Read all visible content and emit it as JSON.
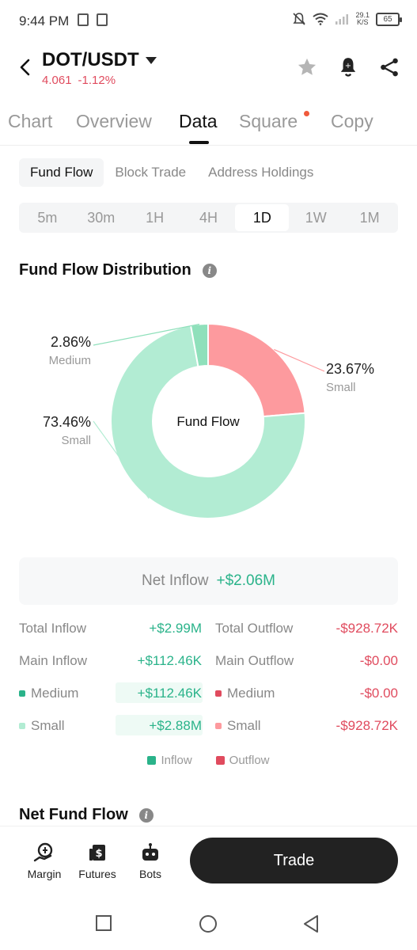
{
  "status_bar": {
    "time": "9:44 PM",
    "net_speed_value": "29.1",
    "net_speed_unit": "K/S",
    "battery": "65"
  },
  "header": {
    "pair": "DOT/USDT",
    "price": "4.061",
    "change": "-1.12%",
    "icons": [
      "back-arrow-icon",
      "caret-down-icon",
      "star-icon",
      "bell-icon",
      "share-icon"
    ]
  },
  "tabs": [
    {
      "label": "Chart",
      "active": false
    },
    {
      "label": "Overview",
      "active": false
    },
    {
      "label": "Data",
      "active": true
    },
    {
      "label": "Square",
      "active": false,
      "badge": true
    },
    {
      "label": "Copy",
      "active": false
    }
  ],
  "subtabs": [
    {
      "label": "Fund Flow",
      "active": true
    },
    {
      "label": "Block Trade",
      "active": false
    },
    {
      "label": "Address Holdings",
      "active": false
    }
  ],
  "timeframes": [
    {
      "label": "5m",
      "active": false
    },
    {
      "label": "30m",
      "active": false
    },
    {
      "label": "1H",
      "active": false
    },
    {
      "label": "4H",
      "active": false
    },
    {
      "label": "1D",
      "active": true
    },
    {
      "label": "1W",
      "active": false
    },
    {
      "label": "1M",
      "active": false
    }
  ],
  "distribution": {
    "title": "Fund Flow Distribution",
    "center_label": "Fund Flow"
  },
  "chart_data": {
    "type": "pie",
    "title": "Fund Flow Distribution",
    "center_label": "Fund Flow",
    "slices": [
      {
        "label": "Small",
        "pct_label": "23.67%",
        "value": 23.67,
        "color": "#fd9a9e",
        "side": "outflow"
      },
      {
        "label": "Small",
        "pct_label": "73.46%",
        "value": 73.46,
        "color": "#b2ecd3",
        "side": "inflow"
      },
      {
        "label": "Medium",
        "pct_label": "2.86%",
        "value": 2.86,
        "color": "#8fe0bb",
        "side": "inflow"
      }
    ]
  },
  "net_inflow": {
    "label": "Net Inflow",
    "value": "+$2.06M"
  },
  "flows": {
    "inflow": [
      {
        "label": "Total Inflow",
        "value": "+$2.99M",
        "bullet": false,
        "bar": 0
      },
      {
        "label": "Main Inflow",
        "value": "+$112.46K",
        "bullet": false,
        "bar": 0
      },
      {
        "label": "Medium",
        "value": "+$112.46K",
        "bullet": true,
        "bullet_color": "#2ab38a",
        "bar": 1.0
      },
      {
        "label": "Small",
        "value": "+$2.88M",
        "bullet": true,
        "bullet_color": "#b2ecd3",
        "bar": 1.0
      }
    ],
    "outflow": [
      {
        "label": "Total Outflow",
        "value": "-$928.72K",
        "bullet": false
      },
      {
        "label": "Main Outflow",
        "value": "-$0.00",
        "bullet": false
      },
      {
        "label": "Medium",
        "value": "-$0.00",
        "bullet": true,
        "bullet_color": "#e04b5e"
      },
      {
        "label": "Small",
        "value": "-$928.72K",
        "bullet": true,
        "bullet_color": "#fd9a9e"
      }
    ]
  },
  "legend": [
    {
      "label": "Inflow",
      "color": "#2ab38a"
    },
    {
      "label": "Outflow",
      "color": "#e04b5e"
    }
  ],
  "net_fund_flow": {
    "title": "Net Fund Flow"
  },
  "bottom_nav": {
    "items": [
      {
        "label": "Margin",
        "icon": "margin-icon"
      },
      {
        "label": "Futures",
        "icon": "futures-icon"
      },
      {
        "label": "Bots",
        "icon": "bots-icon"
      }
    ],
    "trade_label": "Trade"
  },
  "android_nav": [
    "recents-icon",
    "home-icon",
    "back-icon"
  ]
}
